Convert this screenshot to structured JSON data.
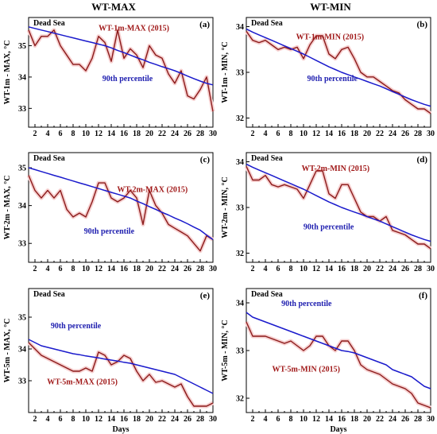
{
  "column_titles": {
    "left": "WT-MAX",
    "right": "WT-MIN"
  },
  "xlabel": "Days",
  "colors": {
    "observed": "#8b1a1a",
    "percentile": "#1a1acc",
    "halo": "#f6d0d0"
  },
  "chart_data": [
    {
      "panel": "a",
      "type": "line",
      "site": "Dead Sea",
      "ylabel": "WT-1m - MAX, °C",
      "xlim": [
        1,
        30
      ],
      "ylim": [
        32.4,
        35.9
      ],
      "yticks": [
        33,
        34,
        35
      ],
      "xticks": [
        2,
        4,
        6,
        8,
        10,
        12,
        14,
        16,
        18,
        20,
        22,
        24,
        26,
        28,
        30
      ],
      "x": [
        1,
        2,
        3,
        4,
        5,
        6,
        7,
        8,
        9,
        10,
        11,
        12,
        13,
        14,
        15,
        16,
        17,
        18,
        19,
        20,
        21,
        22,
        23,
        24,
        25,
        26,
        27,
        28,
        29,
        30
      ],
      "series": [
        {
          "name": "WT-1m-MAX (2015)",
          "role": "observed",
          "values": [
            35.5,
            35.0,
            35.3,
            35.3,
            35.5,
            35.0,
            34.7,
            34.4,
            34.4,
            34.2,
            34.6,
            35.3,
            35.1,
            34.5,
            35.5,
            34.6,
            34.9,
            34.7,
            34.3,
            35.0,
            34.7,
            34.6,
            34.1,
            33.8,
            34.2,
            33.4,
            33.3,
            33.6,
            34.0,
            32.9
          ]
        },
        {
          "name": "90th percentile",
          "role": "percentile",
          "values": [
            35.6,
            35.55,
            35.5,
            35.45,
            35.4,
            35.35,
            35.3,
            35.25,
            35.2,
            35.15,
            35.1,
            35.05,
            35.0,
            34.93,
            34.85,
            34.78,
            34.7,
            34.62,
            34.55,
            34.47,
            34.4,
            34.33,
            34.27,
            34.2,
            34.12,
            34.03,
            33.95,
            33.87,
            33.8,
            33.75
          ]
        }
      ],
      "annotations": {
        "observed_label": "WT-1m-MAX (2015)",
        "percentile_label": "90th percentile"
      }
    },
    {
      "panel": "b",
      "type": "line",
      "site": "Dead Sea",
      "ylabel": "WT-1m - MIN, °C",
      "xlim": [
        1,
        30
      ],
      "ylim": [
        31.8,
        34.2
      ],
      "yticks": [
        32,
        33,
        34
      ],
      "xticks": [
        2,
        4,
        6,
        8,
        10,
        12,
        14,
        16,
        18,
        20,
        22,
        24,
        26,
        28,
        30
      ],
      "x": [
        1,
        2,
        3,
        4,
        5,
        6,
        7,
        8,
        9,
        10,
        11,
        12,
        13,
        14,
        15,
        16,
        17,
        18,
        19,
        20,
        21,
        22,
        23,
        24,
        25,
        26,
        27,
        28,
        29,
        30
      ],
      "series": [
        {
          "name": "WT-1m-MIN (2015)",
          "role": "observed",
          "values": [
            33.9,
            33.7,
            33.65,
            33.7,
            33.6,
            33.5,
            33.55,
            33.5,
            33.55,
            33.3,
            33.6,
            33.8,
            33.8,
            33.4,
            33.3,
            33.5,
            33.55,
            33.3,
            33.0,
            32.9,
            32.9,
            32.8,
            32.7,
            32.6,
            32.55,
            32.4,
            32.3,
            32.2,
            32.2,
            32.1
          ]
        },
        {
          "name": "90th percentile",
          "role": "percentile",
          "values": [
            33.95,
            33.88,
            33.82,
            33.76,
            33.7,
            33.64,
            33.58,
            33.52,
            33.46,
            33.4,
            33.33,
            33.26,
            33.19,
            33.12,
            33.06,
            33.0,
            32.95,
            32.9,
            32.85,
            32.8,
            32.75,
            32.7,
            32.64,
            32.58,
            32.52,
            32.46,
            32.4,
            32.35,
            32.3,
            32.26
          ]
        }
      ],
      "annotations": {
        "observed_label": "WT-1m-MIN (2015)",
        "percentile_label": "90th percentile"
      }
    },
    {
      "panel": "c",
      "type": "line",
      "site": "Dead Sea",
      "ylabel": "WT-2m - MAX, °C",
      "xlim": [
        1,
        30
      ],
      "ylim": [
        32.5,
        35.4
      ],
      "yticks": [
        33,
        34,
        35
      ],
      "xticks": [
        2,
        4,
        6,
        8,
        10,
        12,
        14,
        16,
        18,
        20,
        22,
        24,
        26,
        28,
        30
      ],
      "x": [
        1,
        2,
        3,
        4,
        5,
        6,
        7,
        8,
        9,
        10,
        11,
        12,
        13,
        14,
        15,
        16,
        17,
        18,
        19,
        20,
        21,
        22,
        23,
        24,
        25,
        26,
        27,
        28,
        29,
        30
      ],
      "series": [
        {
          "name": "WT-2m-MAX (2015)",
          "role": "observed",
          "values": [
            34.8,
            34.4,
            34.2,
            34.4,
            34.2,
            34.4,
            33.9,
            33.7,
            33.8,
            33.7,
            34.1,
            34.6,
            34.6,
            34.2,
            34.1,
            34.2,
            34.4,
            34.2,
            33.5,
            34.4,
            34.0,
            33.8,
            33.5,
            33.4,
            33.3,
            33.2,
            33.0,
            32.8,
            33.2,
            33.1
          ]
        },
        {
          "name": "90th percentile",
          "role": "percentile",
          "values": [
            35.0,
            34.95,
            34.9,
            34.85,
            34.8,
            34.75,
            34.7,
            34.65,
            34.6,
            34.55,
            34.5,
            34.45,
            34.4,
            34.35,
            34.3,
            34.25,
            34.2,
            34.12,
            34.05,
            33.97,
            33.9,
            33.82,
            33.75,
            33.67,
            33.6,
            33.52,
            33.43,
            33.35,
            33.22,
            33.1
          ]
        }
      ],
      "annotations": {
        "observed_label": "WT-2m-MAX (2015)",
        "percentile_label": "90th percentile"
      }
    },
    {
      "panel": "d",
      "type": "line",
      "site": "Dead Sea",
      "ylabel": "WT-2m - MIN, °C",
      "xlim": [
        1,
        30
      ],
      "ylim": [
        31.8,
        34.2
      ],
      "yticks": [
        32,
        33,
        34
      ],
      "xticks": [
        2,
        4,
        6,
        8,
        10,
        12,
        14,
        16,
        18,
        20,
        22,
        24,
        26,
        28,
        30
      ],
      "x": [
        1,
        2,
        3,
        4,
        5,
        6,
        7,
        8,
        9,
        10,
        11,
        12,
        13,
        14,
        15,
        16,
        17,
        18,
        19,
        20,
        21,
        22,
        23,
        24,
        25,
        26,
        27,
        28,
        29,
        30
      ],
      "series": [
        {
          "name": "WT-2m-MIN (2015)",
          "role": "observed",
          "values": [
            33.9,
            33.6,
            33.6,
            33.7,
            33.5,
            33.45,
            33.5,
            33.45,
            33.4,
            33.2,
            33.5,
            33.8,
            33.8,
            33.3,
            33.2,
            33.5,
            33.5,
            33.2,
            32.9,
            32.8,
            32.8,
            32.7,
            32.8,
            32.5,
            32.45,
            32.4,
            32.3,
            32.2,
            32.2,
            32.1
          ]
        },
        {
          "name": "90th percentile",
          "role": "percentile",
          "values": [
            33.95,
            33.88,
            33.82,
            33.76,
            33.7,
            33.64,
            33.58,
            33.52,
            33.46,
            33.4,
            33.33,
            33.26,
            33.19,
            33.12,
            33.06,
            33.0,
            32.95,
            32.9,
            32.85,
            32.8,
            32.75,
            32.7,
            32.64,
            32.58,
            32.52,
            32.46,
            32.4,
            32.35,
            32.3,
            32.26
          ]
        }
      ],
      "annotations": {
        "observed_label": "WT-2m-MIN (2015)",
        "percentile_label": "90th percentile"
      }
    },
    {
      "panel": "e",
      "type": "line",
      "site": "Dead Sea",
      "ylabel": "WT-5m - MAX, °C",
      "xlim": [
        1,
        30
      ],
      "ylim": [
        32.0,
        35.9
      ],
      "yticks": [
        33,
        34,
        35
      ],
      "xticks": [
        2,
        4,
        6,
        8,
        10,
        12,
        14,
        16,
        18,
        20,
        22,
        24,
        26,
        28,
        30
      ],
      "x": [
        1,
        2,
        3,
        4,
        5,
        6,
        7,
        8,
        9,
        10,
        11,
        12,
        13,
        14,
        15,
        16,
        17,
        18,
        19,
        20,
        21,
        22,
        23,
        24,
        25,
        26,
        27,
        28,
        29,
        30
      ],
      "series": [
        {
          "name": "WT-5m-MAX (2015)",
          "role": "observed",
          "values": [
            34.2,
            34.0,
            33.8,
            33.7,
            33.6,
            33.5,
            33.4,
            33.3,
            33.3,
            33.4,
            33.3,
            33.9,
            33.8,
            33.5,
            33.6,
            33.8,
            33.7,
            33.3,
            33.0,
            33.2,
            32.95,
            33.0,
            32.9,
            32.8,
            32.9,
            32.5,
            32.2,
            32.2,
            32.2,
            32.3
          ]
        },
        {
          "name": "90th percentile",
          "role": "percentile",
          "values": [
            34.3,
            34.2,
            34.1,
            34.05,
            34.0,
            33.95,
            33.9,
            33.85,
            33.82,
            33.78,
            33.75,
            33.72,
            33.68,
            33.65,
            33.62,
            33.58,
            33.55,
            33.5,
            33.45,
            33.4,
            33.35,
            33.3,
            33.25,
            33.2,
            33.1,
            33.0,
            32.9,
            32.8,
            32.7,
            32.6
          ]
        }
      ],
      "annotations": {
        "observed_label": "WT-5m-MAX (2015)",
        "percentile_label": "90th percentile"
      }
    },
    {
      "panel": "f",
      "type": "line",
      "site": "Dead Sea",
      "ylabel": "WT-5m - MIN, °C",
      "xlim": [
        1,
        30
      ],
      "ylim": [
        31.7,
        34.3
      ],
      "yticks": [
        32,
        33,
        34
      ],
      "xticks": [
        2,
        4,
        6,
        8,
        10,
        12,
        14,
        16,
        18,
        20,
        22,
        24,
        26,
        28,
        30
      ],
      "x": [
        1,
        2,
        3,
        4,
        5,
        6,
        7,
        8,
        9,
        10,
        11,
        12,
        13,
        14,
        15,
        16,
        17,
        18,
        19,
        20,
        21,
        22,
        23,
        24,
        25,
        26,
        27,
        28,
        29,
        30
      ],
      "series": [
        {
          "name": "WT-5m-MIN (2015)",
          "role": "observed",
          "values": [
            33.6,
            33.3,
            33.3,
            33.3,
            33.25,
            33.2,
            33.15,
            33.2,
            33.1,
            33.0,
            33.1,
            33.3,
            33.3,
            33.1,
            33.0,
            33.2,
            33.2,
            33.0,
            32.7,
            32.6,
            32.55,
            32.5,
            32.4,
            32.3,
            32.25,
            32.2,
            32.1,
            31.9,
            31.85,
            31.8
          ]
        },
        {
          "name": "90th percentile",
          "role": "percentile",
          "values": [
            33.8,
            33.7,
            33.65,
            33.6,
            33.55,
            33.5,
            33.45,
            33.4,
            33.35,
            33.3,
            33.25,
            33.2,
            33.15,
            33.1,
            33.05,
            33.0,
            32.98,
            32.95,
            32.9,
            32.85,
            32.8,
            32.75,
            32.7,
            32.6,
            32.55,
            32.5,
            32.45,
            32.35,
            32.25,
            32.2
          ]
        }
      ],
      "annotations": {
        "observed_label": "WT-5m-MIN (2015)",
        "percentile_label": "90th percentile"
      }
    }
  ]
}
